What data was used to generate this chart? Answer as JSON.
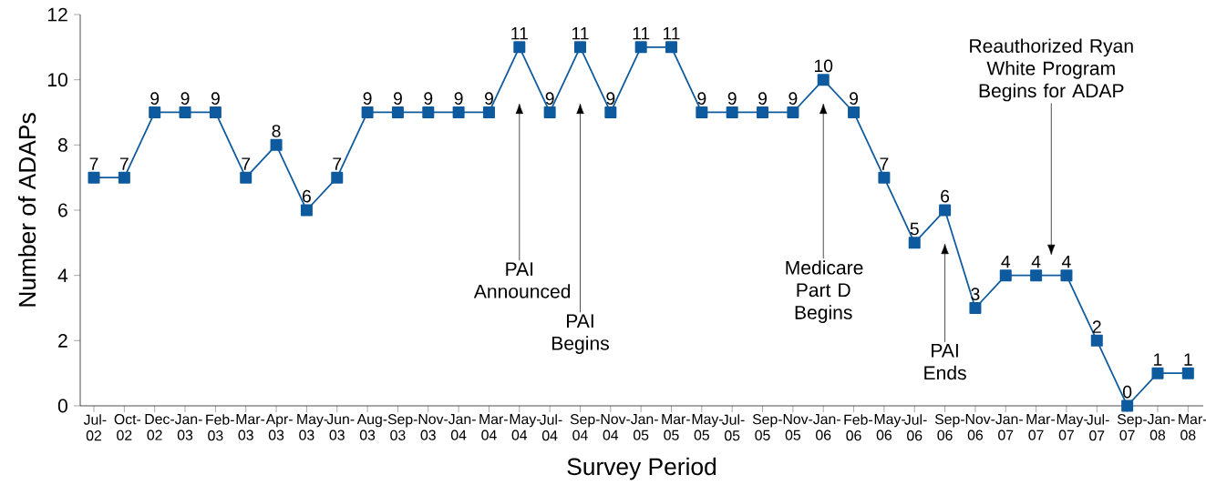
{
  "chart_data": {
    "type": "line",
    "xlabel": "Survey Period",
    "ylabel": "Number of ADAPs",
    "categories": [
      "Jul-02",
      "Oct-02",
      "Dec-02",
      "Jan-03",
      "Feb-03",
      "Mar-03",
      "Apr-03",
      "May-03",
      "Jun-03",
      "Aug-03",
      "Sep-03",
      "Nov-03",
      "Jan-04",
      "Mar-04",
      "May-04",
      "Jul-04",
      "Sep-04",
      "Nov-04",
      "Jan-05",
      "Mar-05",
      "May-05",
      "Jul-05",
      "Sep-05",
      "Nov-05",
      "Jan-06",
      "Feb-06",
      "May-06",
      "Jul-06",
      "Sep-06",
      "Nov-06",
      "Jan-07",
      "Mar-07",
      "May-07",
      "Jul-07",
      "Sep-07",
      "Jan-08",
      "Mar-08"
    ],
    "values": [
      7,
      7,
      9,
      9,
      9,
      7,
      8,
      6,
      7,
      9,
      9,
      9,
      9,
      9,
      11,
      9,
      11,
      9,
      11,
      11,
      9,
      9,
      9,
      9,
      10,
      9,
      7,
      5,
      6,
      3,
      4,
      4,
      4,
      2,
      0,
      1,
      1
    ],
    "color": "#0e5a9e",
    "marker": "square",
    "line_style": "solid",
    "data_labels": true,
    "ylim": [
      0,
      12
    ],
    "yticks": [
      0,
      2,
      4,
      6,
      8,
      10,
      12
    ],
    "annotations": [
      "PAI Announced",
      "PAI Begins",
      "Medicare Part D Begins",
      "PAI Ends",
      "Reauthorized Ryan White Program Begins for ADAP"
    ]
  }
}
